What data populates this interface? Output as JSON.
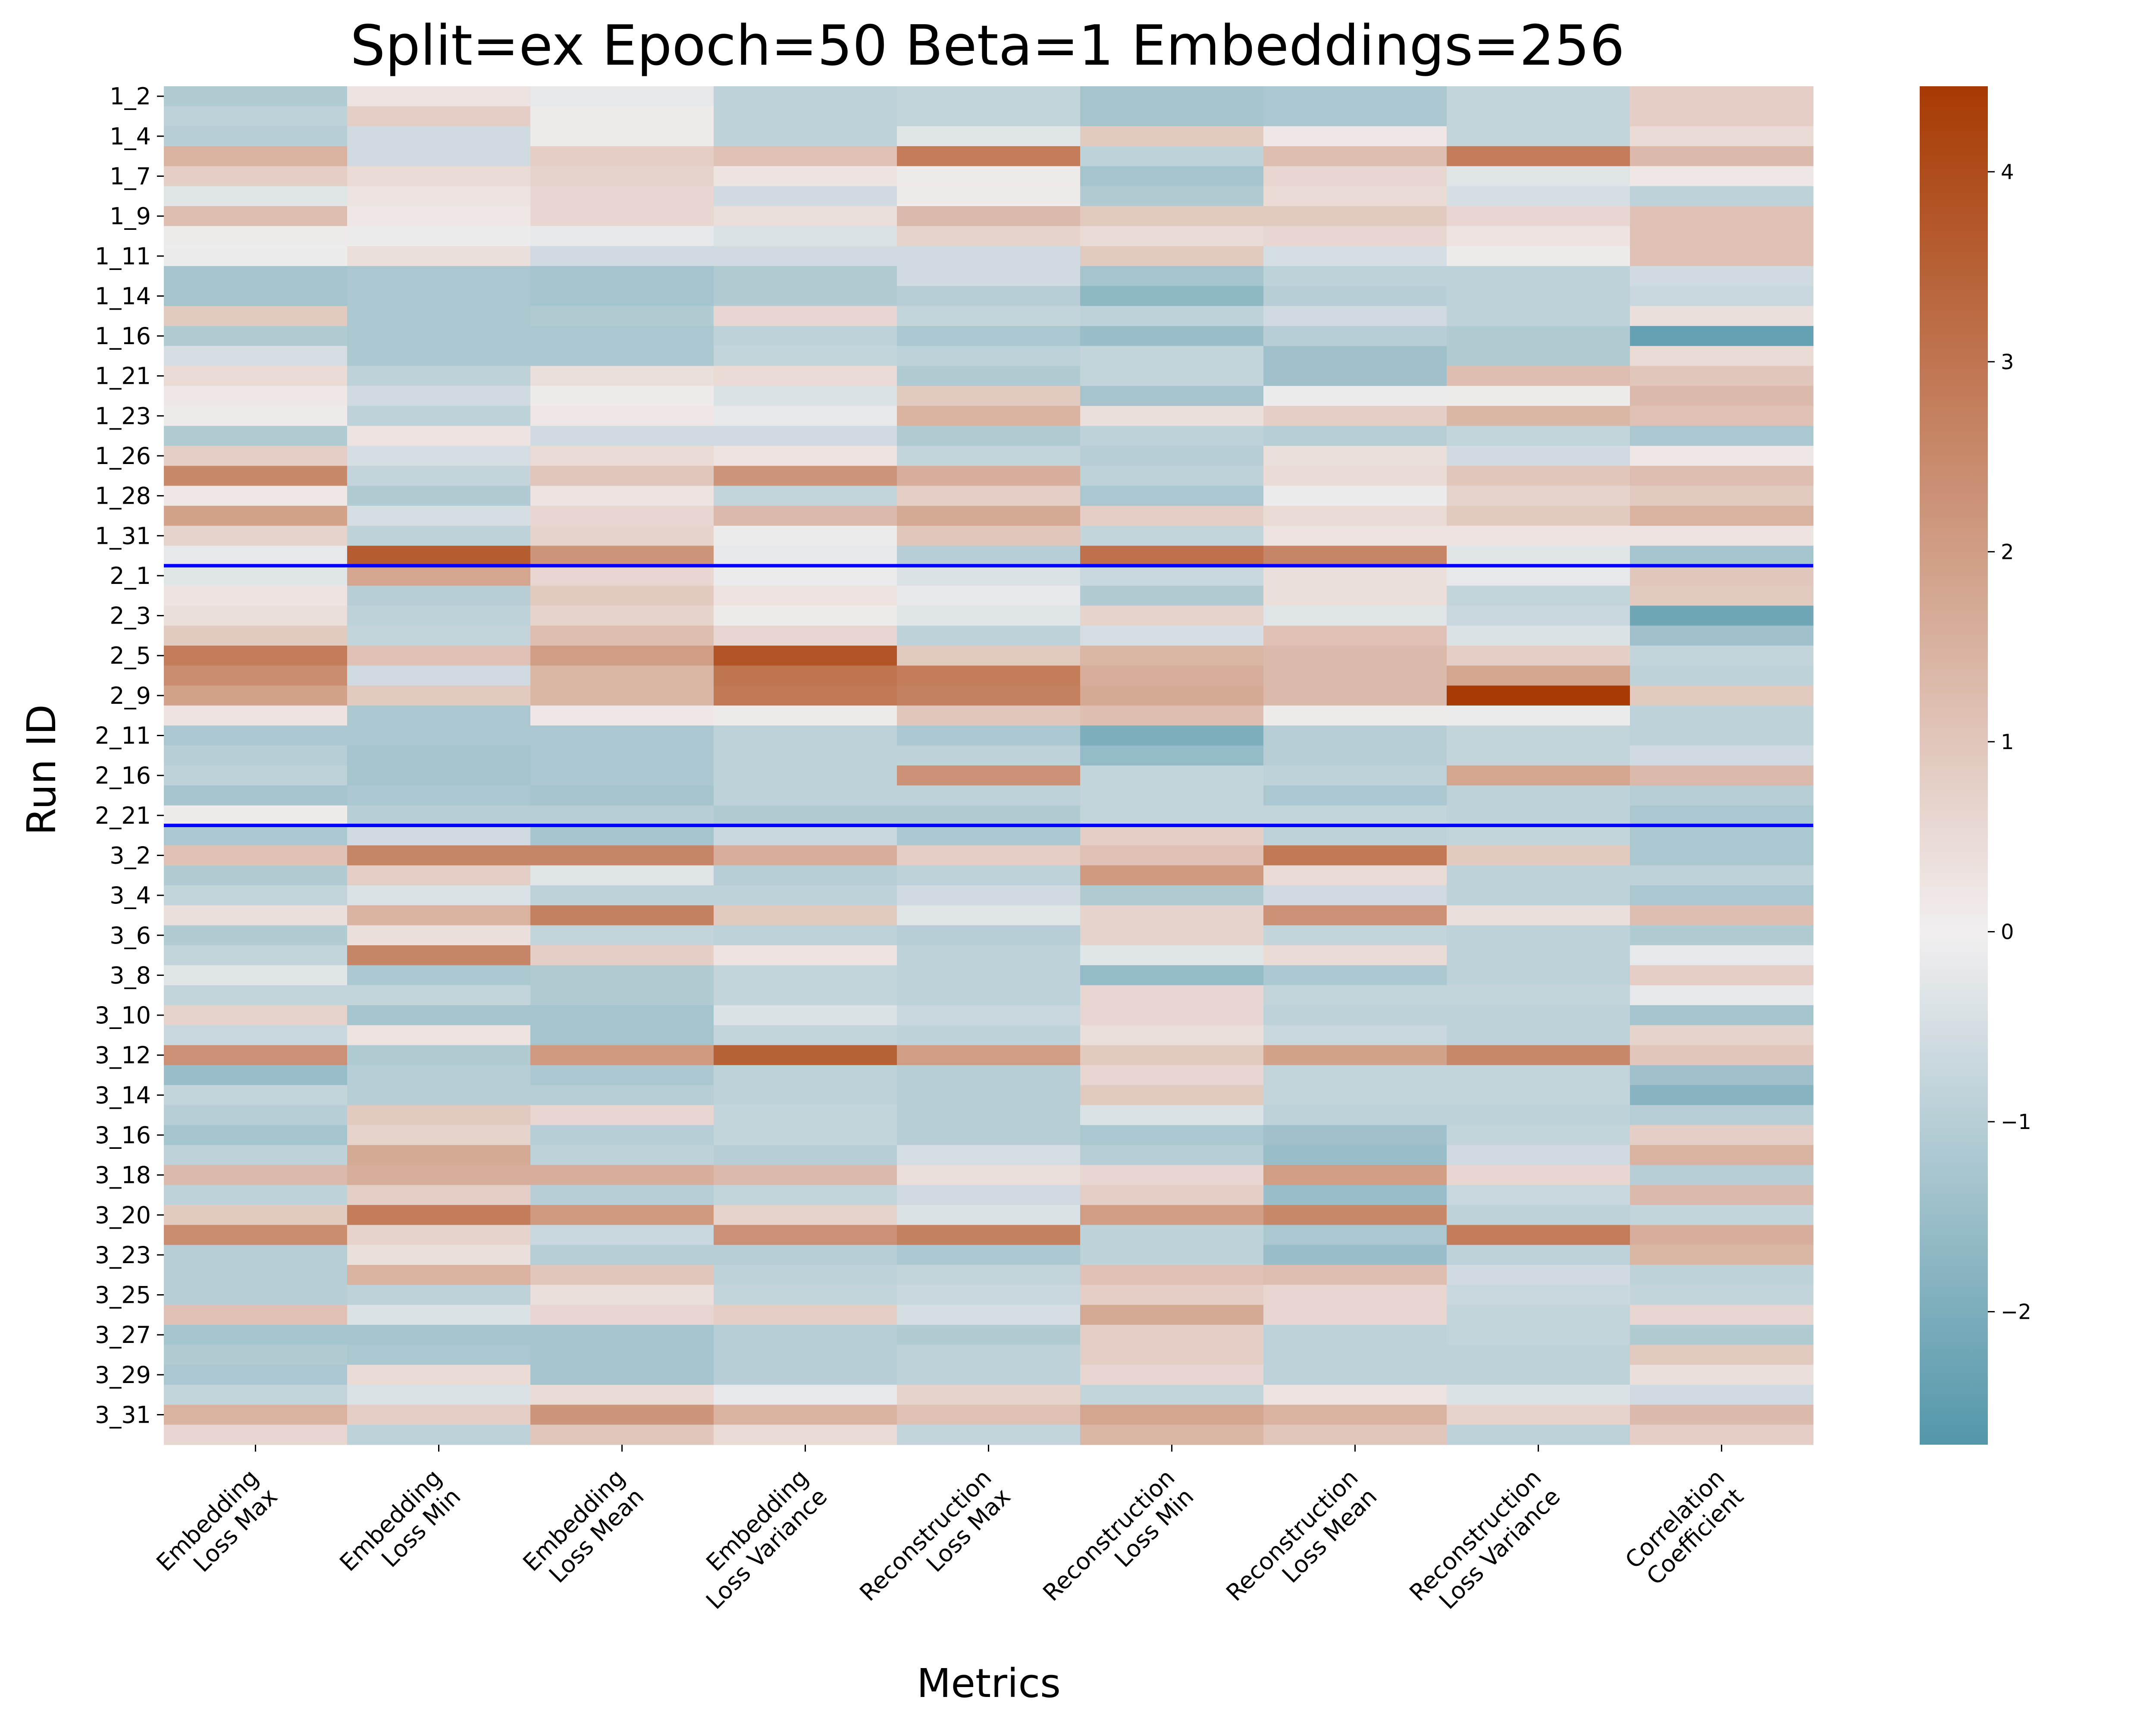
{
  "chart_data": {
    "type": "heatmap",
    "title": "Split=ex Epoch=50 Beta=1 Embeddings=256",
    "xlabel": "Metrics",
    "ylabel": "Run ID",
    "columns": [
      [
        "Embedding",
        "Loss Max"
      ],
      [
        "Embedding",
        "Loss Min"
      ],
      [
        "Embedding",
        "Loss Mean"
      ],
      [
        "Embedding",
        "Loss Variance"
      ],
      [
        "Reconstruction",
        "Loss Max"
      ],
      [
        "Reconstruction",
        "Loss Min"
      ],
      [
        "Reconstruction",
        "Loss Mean"
      ],
      [
        "Reconstruction",
        "Loss Variance"
      ],
      [
        "Correlation",
        "Coefficient"
      ]
    ],
    "row_tick_labels": [
      "1_2",
      "1_4",
      "1_7",
      "1_9",
      "1_11",
      "1_14",
      "1_16",
      "1_21",
      "1_23",
      "1_26",
      "1_28",
      "1_31",
      "2_1",
      "2_3",
      "2_5",
      "2_9",
      "2_11",
      "2_16",
      "2_21",
      "3_2",
      "3_4",
      "3_6",
      "3_8",
      "3_10",
      "3_12",
      "3_14",
      "3_16",
      "3_18",
      "3_20",
      "3_23",
      "3_25",
      "3_27",
      "3_29",
      "3_31"
    ],
    "row_count": 68,
    "group_separators_after_row": [
      24,
      37
    ],
    "colorbar": {
      "min": -2.7,
      "max": 4.45,
      "ticks": [
        -2,
        -1,
        0,
        1,
        2,
        3,
        4
      ],
      "low_color": "#5397aa",
      "mid_color": "#f2eff0",
      "high_color": "#a73a03"
    },
    "separator_color": "#0000ff",
    "values": [
      [
        -1.1,
        0.3,
        -0.2,
        -0.9,
        -0.8,
        -1.3,
        -1.2,
        -0.8,
        0.8
      ],
      [
        -0.9,
        0.8,
        0.1,
        -0.9,
        -0.8,
        -1.3,
        -1.2,
        -0.8,
        0.8
      ],
      [
        -1.0,
        -0.6,
        0.1,
        -0.9,
        -0.3,
        0.9,
        0.2,
        -0.8,
        0.5
      ],
      [
        1.5,
        -0.6,
        0.8,
        1.1,
        2.8,
        -0.9,
        1.2,
        2.8,
        1.3
      ],
      [
        0.8,
        0.5,
        0.7,
        0.3,
        0.1,
        -1.3,
        0.6,
        -0.3,
        0.2
      ],
      [
        -0.3,
        0.3,
        0.6,
        -0.6,
        0.1,
        -1.1,
        0.5,
        -0.5,
        -0.9
      ],
      [
        1.2,
        0.2,
        0.6,
        0.4,
        1.3,
        0.9,
        0.9,
        0.6,
        1.1
      ],
      [
        0.1,
        -0.1,
        -0.2,
        -0.4,
        0.7,
        0.5,
        0.6,
        0.3,
        1.1
      ],
      [
        -0.1,
        0.4,
        -0.6,
        -0.6,
        -0.6,
        0.9,
        -0.5,
        0.1,
        1.1
      ],
      [
        -1.3,
        -1.2,
        -1.3,
        -1.1,
        -0.6,
        -1.3,
        -0.9,
        -0.9,
        -0.6
      ],
      [
        -1.3,
        -1.2,
        -1.3,
        -1.1,
        -1.0,
        -1.7,
        -1.0,
        -0.9,
        -0.7
      ],
      [
        0.9,
        -1.2,
        -1.1,
        0.6,
        -0.8,
        -0.9,
        -0.6,
        -0.9,
        0.4
      ],
      [
        -1.1,
        -1.2,
        -1.2,
        -0.9,
        -1.2,
        -1.5,
        -1.0,
        -1.1,
        -2.4
      ],
      [
        -0.5,
        -1.2,
        -1.2,
        -0.8,
        -0.9,
        -0.8,
        -1.4,
        -1.1,
        0.5
      ],
      [
        0.5,
        -0.9,
        0.4,
        0.5,
        -1.1,
        -0.8,
        -1.4,
        1.2,
        1.0
      ],
      [
        0.2,
        -0.6,
        0.1,
        -0.4,
        0.9,
        -1.3,
        -0.1,
        0.1,
        1.3
      ],
      [
        0.1,
        -0.9,
        0.2,
        -0.2,
        1.5,
        0.4,
        0.8,
        1.4,
        1.1
      ],
      [
        -1.1,
        0.3,
        -0.6,
        -0.6,
        -1.1,
        -0.9,
        -1.0,
        -0.8,
        -1.2
      ],
      [
        0.8,
        -0.5,
        0.5,
        0.3,
        -0.8,
        -1.0,
        0.4,
        -0.6,
        0.2
      ],
      [
        2.5,
        -0.8,
        1.0,
        2.2,
        1.6,
        -0.9,
        0.5,
        1.0,
        1.2
      ],
      [
        0.2,
        -1.1,
        0.3,
        -0.8,
        0.8,
        -1.2,
        -0.1,
        0.7,
        0.9
      ],
      [
        1.9,
        -0.5,
        0.6,
        1.3,
        1.7,
        0.8,
        0.5,
        0.9,
        1.5
      ],
      [
        0.7,
        -0.9,
        0.7,
        -0.1,
        1.0,
        -0.8,
        0.3,
        0.3,
        0.3
      ],
      [
        -0.2,
        3.6,
        2.2,
        -0.2,
        -1.0,
        3.1,
        2.6,
        -0.3,
        -1.3
      ],
      [
        -0.3,
        1.8,
        0.6,
        -0.1,
        -0.4,
        -0.7,
        0.4,
        -0.2,
        1.0
      ],
      [
        0.3,
        -1.0,
        0.9,
        0.3,
        -0.2,
        -1.1,
        0.4,
        -0.8,
        0.9
      ],
      [
        0.4,
        -0.9,
        0.7,
        0.1,
        -0.3,
        0.7,
        -0.3,
        -0.7,
        -2.2
      ],
      [
        0.9,
        -0.8,
        1.2,
        0.6,
        -0.9,
        -0.5,
        1.1,
        -0.4,
        -1.4
      ],
      [
        2.8,
        1.1,
        2.0,
        3.8,
        0.9,
        1.4,
        1.3,
        0.8,
        -0.8
      ],
      [
        2.4,
        -0.6,
        1.4,
        3.0,
        2.8,
        1.6,
        1.3,
        1.8,
        -0.9
      ],
      [
        1.9,
        0.9,
        1.4,
        2.9,
        2.7,
        1.7,
        1.3,
        4.4,
        0.9
      ],
      [
        0.3,
        -1.2,
        0.2,
        0.1,
        1.0,
        1.2,
        0.1,
        -0.1,
        -0.9
      ],
      [
        -1.2,
        -1.2,
        -1.2,
        -0.9,
        -1.2,
        -2.0,
        -1.0,
        -0.8,
        -0.9
      ],
      [
        -1.0,
        -1.3,
        -1.2,
        -0.9,
        -0.9,
        -1.6,
        -1.0,
        -0.8,
        -0.6
      ],
      [
        -0.9,
        -1.3,
        -1.2,
        -0.9,
        2.3,
        -0.8,
        -0.9,
        1.8,
        1.3
      ],
      [
        -1.3,
        -1.2,
        -1.3,
        -0.9,
        -0.9,
        -0.8,
        -1.2,
        -0.9,
        -1.0
      ],
      [
        0.1,
        -1.0,
        -1.0,
        -1.1,
        -1.1,
        -0.8,
        -0.8,
        -0.9,
        -1.2
      ],
      [
        -1.2,
        -0.6,
        -1.3,
        -0.7,
        -1.2,
        0.8,
        -0.9,
        -0.8,
        -1.2
      ],
      [
        1.1,
        2.6,
        2.6,
        1.6,
        0.8,
        1.1,
        2.9,
        0.9,
        -1.2
      ],
      [
        -1.1,
        0.8,
        -0.3,
        -1.0,
        -0.9,
        2.1,
        0.5,
        -0.9,
        -0.9
      ],
      [
        -0.8,
        -0.4,
        -0.9,
        -0.9,
        -0.6,
        -1.1,
        -0.6,
        -0.9,
        -1.2
      ],
      [
        0.4,
        1.5,
        2.7,
        0.9,
        -0.3,
        0.7,
        2.3,
        0.4,
        1.2
      ],
      [
        -1.1,
        0.4,
        -0.8,
        -0.9,
        -1.0,
        0.7,
        -0.8,
        -0.9,
        -1.1
      ],
      [
        -0.8,
        2.6,
        0.8,
        0.3,
        -0.9,
        -0.3,
        0.5,
        -0.9,
        -0.2
      ],
      [
        -0.3,
        -1.2,
        -1.1,
        -0.8,
        -0.9,
        -1.6,
        -1.2,
        -0.9,
        0.8
      ],
      [
        -0.8,
        -0.8,
        -1.1,
        -0.8,
        -0.9,
        0.6,
        -0.8,
        -0.8,
        -0.2
      ],
      [
        0.7,
        -1.3,
        -1.3,
        -0.4,
        -0.7,
        0.6,
        -0.9,
        -0.9,
        -1.3
      ],
      [
        -0.7,
        0.3,
        -1.3,
        -0.8,
        -0.9,
        0.4,
        -0.7,
        -0.9,
        0.7
      ],
      [
        2.3,
        -1.1,
        2.1,
        3.5,
        2.0,
        0.9,
        1.9,
        2.5,
        1.0
      ],
      [
        -1.5,
        -1.0,
        -1.2,
        -0.9,
        -1.0,
        0.6,
        -0.8,
        -0.8,
        -1.4
      ],
      [
        -0.8,
        -1.0,
        -1.0,
        -0.9,
        -1.0,
        0.9,
        -0.8,
        -0.8,
        -1.8
      ],
      [
        -1.0,
        0.9,
        0.6,
        -0.8,
        -1.0,
        -0.4,
        -0.9,
        -0.9,
        -1.0
      ],
      [
        -1.3,
        0.7,
        -1.0,
        -0.8,
        -1.0,
        -1.2,
        -1.4,
        -0.8,
        0.8
      ],
      [
        -0.9,
        1.7,
        -0.9,
        -1.0,
        -0.5,
        -1.0,
        -1.5,
        -0.6,
        1.5
      ],
      [
        1.3,
        1.6,
        1.6,
        1.3,
        0.4,
        0.6,
        2.0,
        0.6,
        -1.0
      ],
      [
        -0.9,
        0.8,
        -1.0,
        -0.8,
        -0.6,
        0.8,
        -1.5,
        -0.7,
        1.3
      ],
      [
        0.9,
        2.8,
        2.1,
        0.7,
        -0.4,
        2.0,
        2.5,
        -0.9,
        -0.8
      ],
      [
        2.4,
        0.7,
        -0.7,
        2.3,
        2.7,
        -0.9,
        -1.2,
        2.8,
        1.6
      ],
      [
        -1.0,
        0.4,
        -1.0,
        -1.0,
        -1.2,
        -0.9,
        -1.5,
        -0.9,
        1.4
      ],
      [
        -1.0,
        1.5,
        1.0,
        -0.9,
        -0.8,
        1.1,
        1.2,
        -0.6,
        -0.9
      ],
      [
        -1.0,
        -0.9,
        0.4,
        -0.8,
        -0.7,
        0.8,
        0.6,
        -0.7,
        -0.8
      ],
      [
        1.1,
        -0.4,
        0.6,
        0.8,
        -0.5,
        1.7,
        0.6,
        -0.8,
        0.6
      ],
      [
        -1.3,
        -1.3,
        -1.3,
        -1.0,
        -1.1,
        0.8,
        -0.9,
        -0.8,
        -1.1
      ],
      [
        -1.1,
        -1.2,
        -1.3,
        -1.0,
        -0.9,
        0.8,
        -0.9,
        -0.9,
        0.9
      ],
      [
        -1.2,
        0.5,
        -1.3,
        -1.0,
        -0.9,
        0.6,
        -0.9,
        -0.9,
        0.4
      ],
      [
        -0.8,
        -0.4,
        0.5,
        -0.2,
        0.7,
        -0.8,
        0.3,
        -0.4,
        -0.6
      ],
      [
        1.5,
        0.8,
        2.2,
        1.5,
        1.1,
        1.8,
        1.5,
        0.7,
        1.3
      ],
      [
        0.6,
        -0.9,
        1.0,
        0.5,
        -0.8,
        1.4,
        1.0,
        -0.9,
        0.8
      ]
    ]
  }
}
